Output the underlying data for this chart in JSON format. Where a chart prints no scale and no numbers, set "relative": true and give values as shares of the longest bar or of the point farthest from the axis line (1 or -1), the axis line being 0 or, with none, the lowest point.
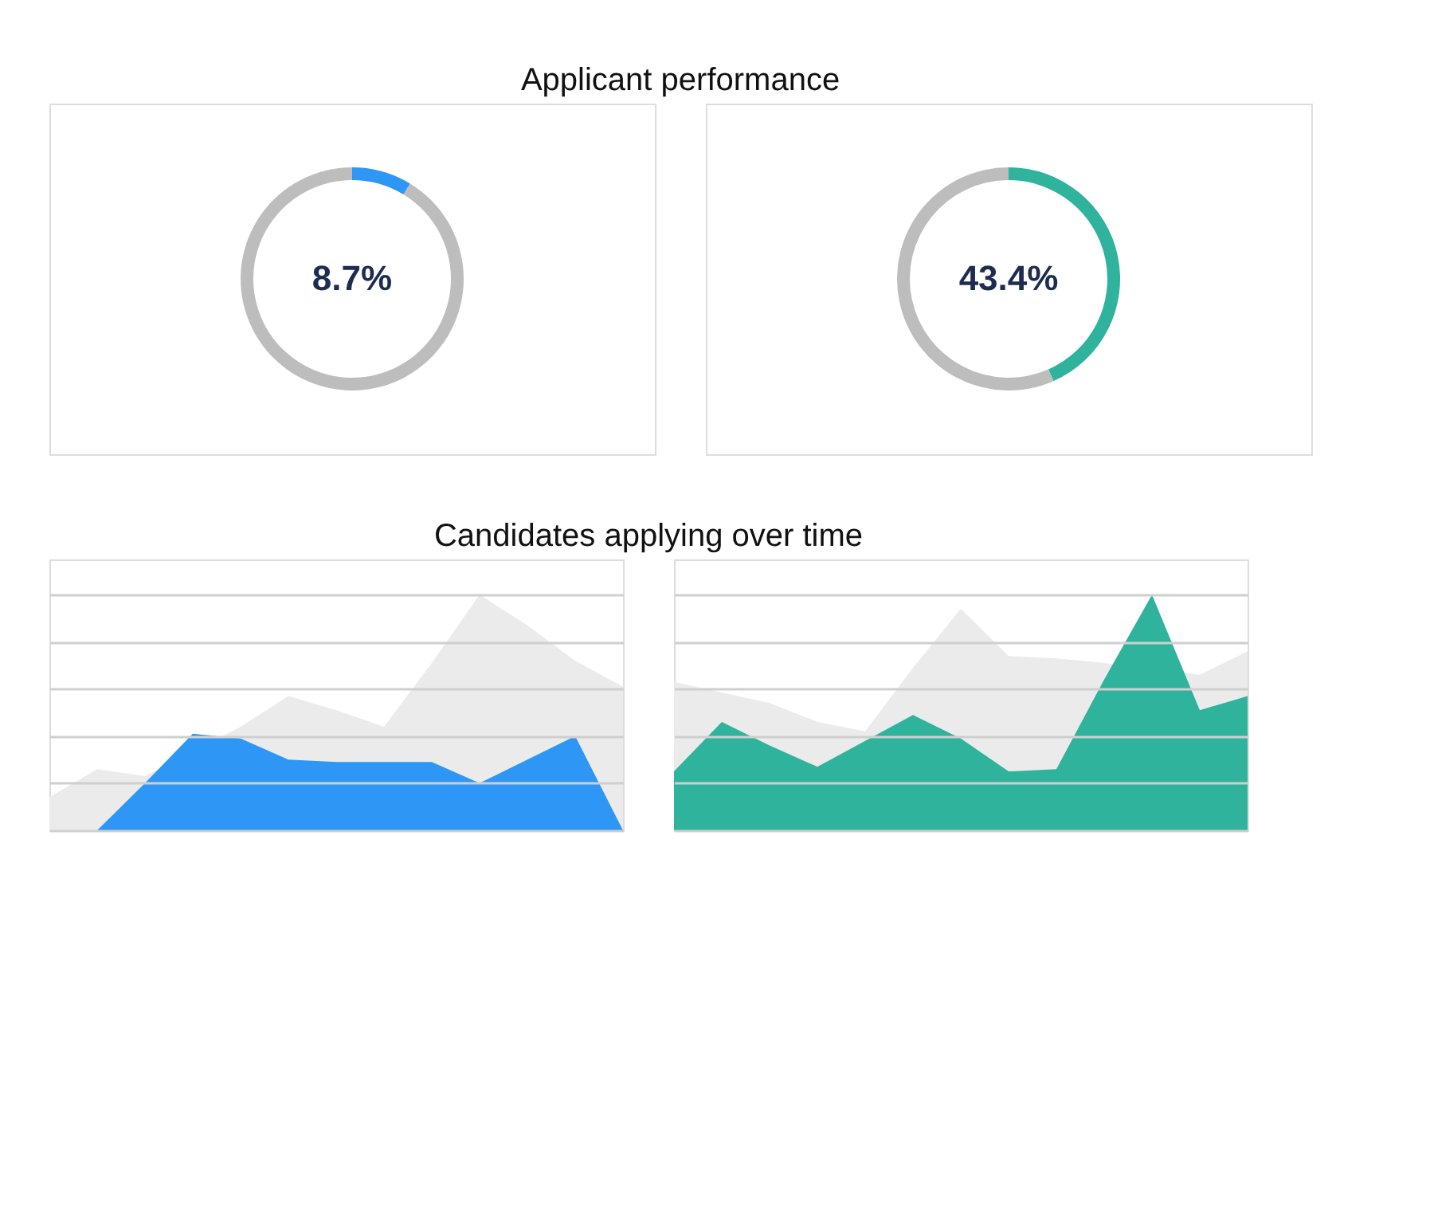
{
  "chart_data": [
    {
      "type": "donut",
      "title": "Applicant performance",
      "categories": [
        null,
        null
      ],
      "values": [
        8.7,
        91.3
      ],
      "colors": [
        "#2e96f5",
        "#bdbdbd"
      ],
      "value_labels": [
        "8.7%",
        null
      ],
      "legend": false
    },
    {
      "type": "donut",
      "categories": [
        null,
        null
      ],
      "values": [
        43.4,
        56.6
      ],
      "colors": [
        "#2fb39c",
        "#bdbdbd"
      ],
      "value_labels": [
        "43.4%",
        null
      ],
      "legend": false
    },
    {
      "type": "area",
      "title": "Candidates applying over time",
      "relative": true,
      "grid": "y",
      "categories": [
        null,
        null,
        null,
        null,
        null,
        null,
        null,
        null,
        null,
        null,
        null,
        null,
        null
      ],
      "series": [
        {
          "color": "#ebebeb",
          "values": [
            0.14,
            0.26,
            0.23,
            null,
            0.44,
            0.57,
            0.51,
            0.44,
            0.71,
            1.0,
            0.87,
            0.72,
            0.61
          ]
        },
        {
          "color": "#2e96f5",
          "values": [
            null,
            0.0,
            0.2,
            0.41,
            0.39,
            0.3,
            0.29,
            0.29,
            0.29,
            0.2,
            0.3,
            0.4,
            0.0
          ]
        }
      ]
    },
    {
      "type": "area",
      "relative": true,
      "grid": "y",
      "categories": [
        null,
        null,
        null,
        null,
        null,
        null,
        null,
        null,
        null,
        null,
        null,
        null,
        null
      ],
      "series": [
        {
          "color": "#ebebeb",
          "values": [
            0.63,
            null,
            0.54,
            0.46,
            0.42,
            0.69,
            0.94,
            0.74,
            0.73,
            0.71,
            null,
            0.66,
            0.76
          ]
        },
        {
          "color": "#2fb39c",
          "values": [
            0.25,
            0.46,
            0.36,
            0.27,
            0.38,
            0.49,
            0.39,
            0.25,
            0.26,
            0.64,
            1.0,
            0.51,
            0.57
          ]
        }
      ]
    }
  ]
}
